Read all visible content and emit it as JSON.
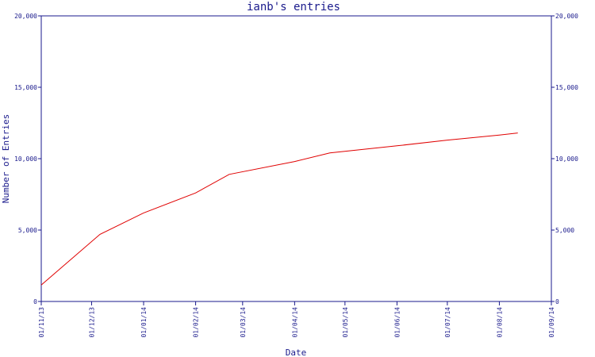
{
  "chart_data": {
    "type": "line",
    "title": "ianb's entries",
    "xlabel": "Date",
    "ylabel": "Number of Entries",
    "x_ticks": [
      "01/11/13",
      "01/12/13",
      "01/01/14",
      "01/02/14",
      "01/03/14",
      "01/04/14",
      "01/05/14",
      "01/06/14",
      "01/07/14",
      "01/08/14",
      "01/09/14"
    ],
    "y_ticks": [
      "0",
      "5,000",
      "10,000",
      "15,000",
      "20,000"
    ],
    "y_tick_values": [
      0,
      5000,
      10000,
      15000,
      20000
    ],
    "ylim": [
      0,
      20000
    ],
    "xlim": [
      "2013-11-01",
      "2014-09-01"
    ],
    "grid": false,
    "series": [
      {
        "color": "#e00000",
        "points": [
          {
            "x": "2013-11-01",
            "y": 1150
          },
          {
            "x": "2013-12-06",
            "y": 4700
          },
          {
            "x": "2014-01-01",
            "y": 6200
          },
          {
            "x": "2014-02-01",
            "y": 7600
          },
          {
            "x": "2014-02-21",
            "y": 8900
          },
          {
            "x": "2014-04-01",
            "y": 9800
          },
          {
            "x": "2014-04-22",
            "y": 10400
          },
          {
            "x": "2014-06-01",
            "y": 10900
          },
          {
            "x": "2014-07-01",
            "y": 11300
          },
          {
            "x": "2014-08-01",
            "y": 11650
          },
          {
            "x": "2014-08-12",
            "y": 11800
          }
        ]
      }
    ]
  }
}
